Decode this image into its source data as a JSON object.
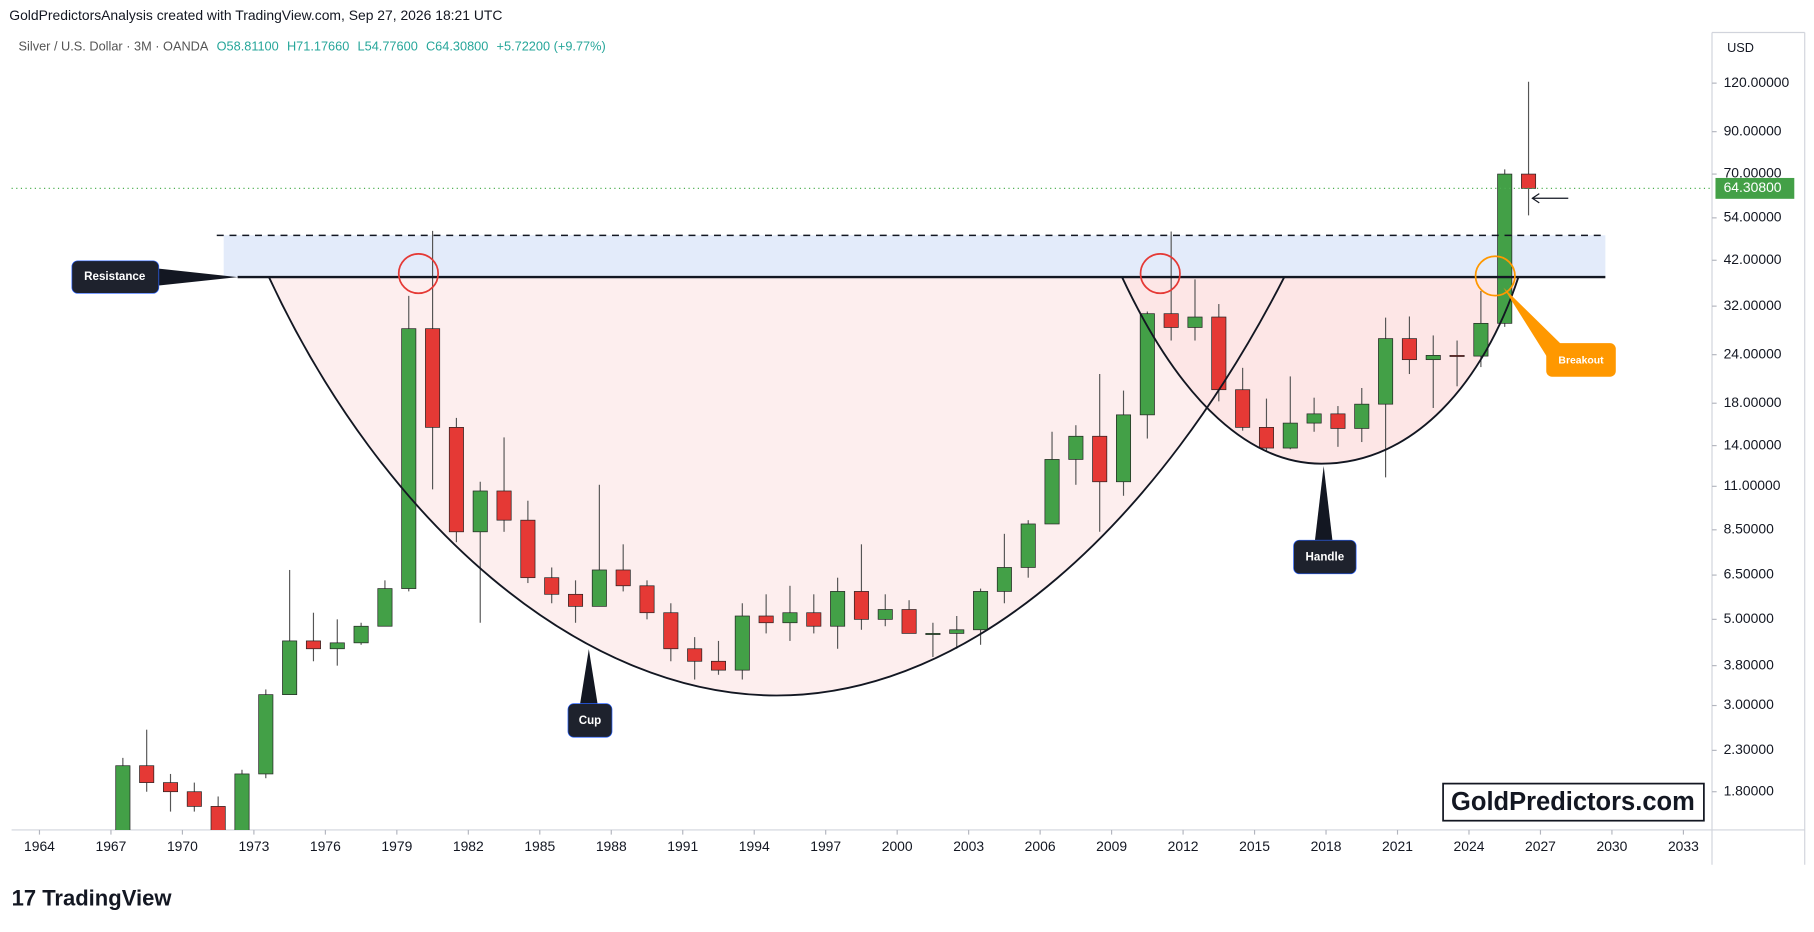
{
  "header": {
    "attribution": "GoldPredictorsAnalysis created with TradingView.com, Sep 27, 2026 18:21 UTC"
  },
  "legend": {
    "symbol": "Silver / U.S. Dollar · 3M · OANDA",
    "open": "O58.81100",
    "high": "H71.17660",
    "low": "L54.77600",
    "close": "C64.30800",
    "change": "+5.72200 (+9.77%)"
  },
  "currency": "USD",
  "brand": "TradingView",
  "watermark": "GoldPredictors.com",
  "annotations": {
    "resistance": "Resistance",
    "cup": "Cup",
    "handle": "Handle",
    "breakout": "Breakout"
  },
  "chart_data": {
    "type": "candlestick",
    "log_scale": true,
    "up_color": "#43a047",
    "down_color": "#e53935",
    "xlim": [
      1962.83,
      2034.2
    ],
    "xticks": [
      1964,
      1967,
      1970,
      1973,
      1976,
      1979,
      1982,
      1985,
      1988,
      1991,
      1994,
      1997,
      2000,
      2003,
      2006,
      2009,
      2012,
      2015,
      2018,
      2021,
      2024,
      2027,
      2030,
      2033
    ],
    "ylim": [
      1.435,
      162
    ],
    "yticks": [
      {
        "value": 1.8,
        "label": "1.80000"
      },
      {
        "value": 2.3,
        "label": "2.30000"
      },
      {
        "value": 3,
        "label": "3.00000"
      },
      {
        "value": 3.8,
        "label": "3.80000"
      },
      {
        "value": 5,
        "label": "5.00000"
      },
      {
        "value": 6.5,
        "label": "6.50000"
      },
      {
        "value": 8.5,
        "label": "8.50000"
      },
      {
        "value": 11,
        "label": "11.00000"
      },
      {
        "value": 14,
        "label": "14.00000"
      },
      {
        "value": 18,
        "label": "18.00000"
      },
      {
        "value": 24,
        "label": "24.00000"
      },
      {
        "value": 32,
        "label": "32.00000"
      },
      {
        "value": 42,
        "label": "42.00000"
      },
      {
        "value": 54,
        "label": "54.00000"
      },
      {
        "value": 70,
        "label": "70.00000"
      },
      {
        "value": 90,
        "label": "90.00000"
      },
      {
        "value": 120,
        "label": "120.00000"
      }
    ],
    "last_price": {
      "value": 64.308,
      "label": "64.30800"
    },
    "x": [
      1967.5,
      1968.5,
      1969.5,
      1970.5,
      1971.5,
      1972.5,
      1973.5,
      1974.5,
      1975.5,
      1976.5,
      1977.5,
      1978.5,
      1979.5,
      1980.5,
      1981.5,
      1982.5,
      1983.5,
      1984.5,
      1985.5,
      1986.5,
      1987.5,
      1988.5,
      1989.5,
      1990.5,
      1991.5,
      1992.5,
      1993.5,
      1994.5,
      1995.5,
      1996.5,
      1997.5,
      1998.5,
      1999.5,
      2000.5,
      2001.5,
      2002.5,
      2003.5,
      2004.5,
      2005.5,
      2006.5,
      2007.5,
      2008.5,
      2009.5,
      2010.5,
      2011.5,
      2012.5,
      2013.5,
      2014.5,
      2015.5,
      2016.5,
      2017.5,
      2018.5,
      2019.5,
      2020.5,
      2021.5,
      2022.5,
      2023.5,
      2024.5,
      2025.5,
      2026.5
    ],
    "open": [
      1.3,
      2.1,
      1.9,
      1.8,
      1.65,
      1.4,
      2.0,
      3.2,
      4.4,
      4.2,
      4.35,
      4.8,
      6.0,
      28,
      15.6,
      8.4,
      10.7,
      9.0,
      6.4,
      5.8,
      5.4,
      6.7,
      6.1,
      5.2,
      4.2,
      3.9,
      3.7,
      5.1,
      4.9,
      5.2,
      4.8,
      5.9,
      5.0,
      5.3,
      4.6,
      4.6,
      4.7,
      5.9,
      6.8,
      8.8,
      12.9,
      14.8,
      11.3,
      16.8,
      30.6,
      28.2,
      30.0,
      19.5,
      15.6,
      13.8,
      16.0,
      16.9,
      15.5,
      17.9,
      26.4,
      23.3,
      23.9,
      23.8,
      28.9,
      70
    ],
    "high": [
      2.2,
      2.6,
      2.0,
      1.9,
      1.75,
      2.05,
      3.3,
      6.7,
      5.2,
      5.0,
      4.9,
      6.3,
      34,
      50,
      16.5,
      11.3,
      14.7,
      10.1,
      6.8,
      6.3,
      11.1,
      7.8,
      6.3,
      5.5,
      4.5,
      4.4,
      5.5,
      5.8,
      6.1,
      5.8,
      6.4,
      7.8,
      5.8,
      5.6,
      4.9,
      5.1,
      6.0,
      8.3,
      9.0,
      15.2,
      15.8,
      21.4,
      19.4,
      31,
      49.8,
      37.5,
      32.4,
      22.2,
      18.5,
      21.1,
      18.6,
      17.7,
      19.7,
      29.9,
      30.1,
      26.9,
      26.1,
      35,
      72,
      121
    ],
    "low": [
      1.3,
      1.8,
      1.6,
      1.6,
      1.3,
      1.4,
      1.95,
      3.2,
      3.9,
      3.8,
      4.3,
      4.8,
      5.9,
      10.8,
      7.9,
      4.9,
      8.4,
      6.2,
      5.5,
      4.9,
      5.4,
      5.9,
      5.0,
      3.9,
      3.5,
      3.6,
      3.5,
      4.6,
      4.4,
      4.6,
      4.2,
      4.7,
      4.8,
      4.6,
      4.0,
      4.2,
      4.3,
      5.5,
      6.4,
      8.8,
      11.1,
      8.4,
      10.4,
      14.6,
      26.1,
      26.1,
      18.2,
      15.3,
      13.6,
      13.7,
      15.2,
      13.9,
      14.3,
      11.6,
      21.4,
      17.5,
      19.9,
      22.3,
      28.3,
      54.8
    ],
    "close": [
      2.1,
      1.9,
      1.8,
      1.65,
      1.4,
      2.0,
      3.2,
      4.4,
      4.2,
      4.35,
      4.8,
      6.0,
      28,
      15.6,
      8.4,
      10.7,
      9.0,
      6.4,
      5.8,
      5.4,
      6.7,
      6.1,
      5.2,
      4.2,
      3.9,
      3.7,
      5.1,
      4.9,
      5.2,
      4.8,
      5.9,
      5.0,
      5.3,
      4.6,
      4.6,
      4.7,
      5.9,
      6.8,
      8.8,
      12.9,
      14.8,
      11.3,
      16.8,
      30.6,
      28.2,
      30.0,
      19.5,
      15.6,
      13.8,
      16.0,
      16.9,
      15.5,
      17.9,
      26.4,
      23.3,
      23.9,
      23.8,
      28.9,
      70,
      64.3
    ]
  }
}
